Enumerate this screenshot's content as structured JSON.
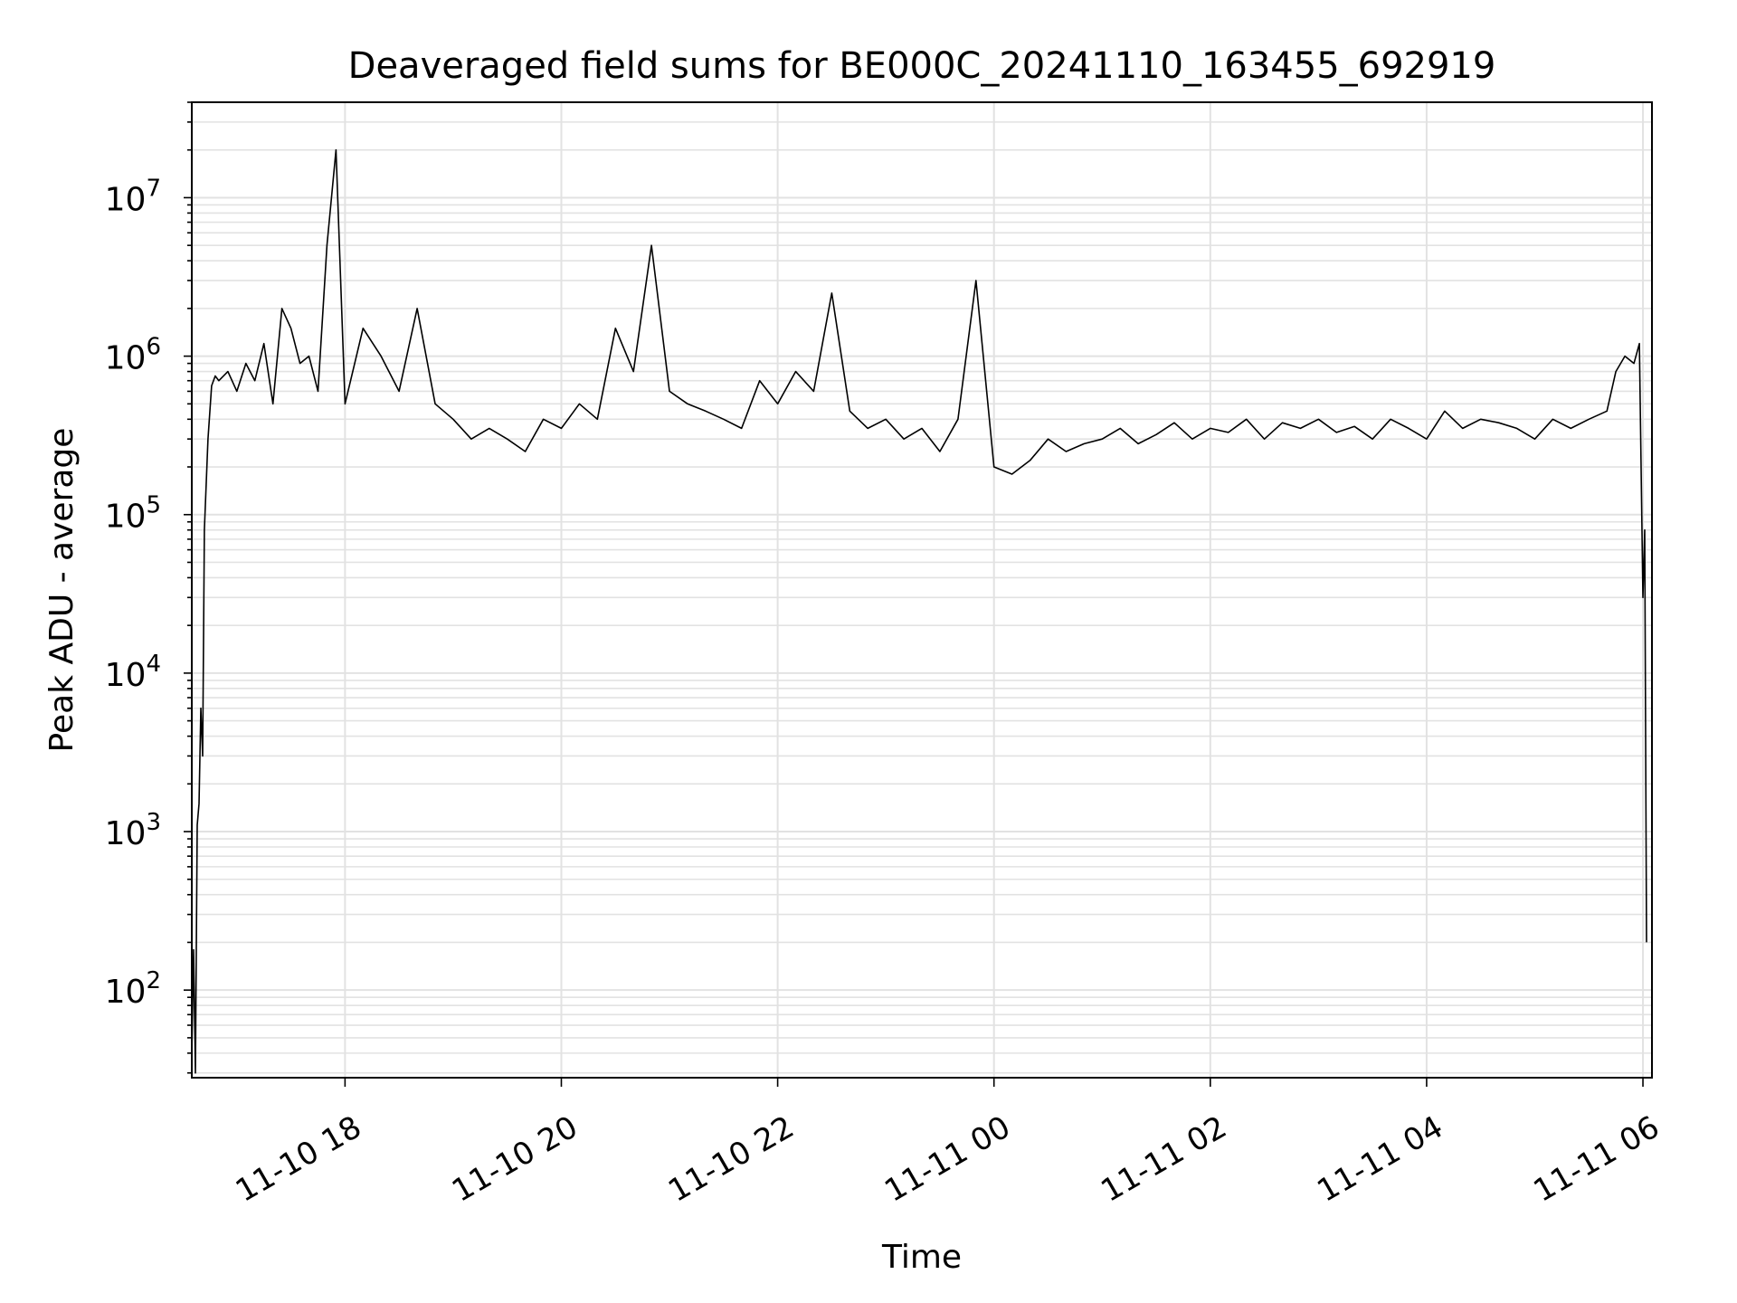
{
  "chart_data": {
    "type": "line",
    "title": "Deaveraged field sums for BE000C_20241110_163455_692919",
    "xlabel": "Time",
    "ylabel": "Peak ADU - average",
    "x_scale": "time",
    "y_scale": "log",
    "xlim": [
      "2024-11-10T16:35",
      "2024-11-11T06:05"
    ],
    "ylim": [
      28,
      40000000
    ],
    "grid": true,
    "grid_color": "#e2e2e2",
    "line_color": "#000000",
    "x_ticks": [
      {
        "label": "11-10 18",
        "t": "2024-11-10T18:00"
      },
      {
        "label": "11-10 20",
        "t": "2024-11-10T20:00"
      },
      {
        "label": "11-10 22",
        "t": "2024-11-10T22:00"
      },
      {
        "label": "11-11 00",
        "t": "2024-11-11T00:00"
      },
      {
        "label": "11-11 02",
        "t": "2024-11-11T02:00"
      },
      {
        "label": "11-11 04",
        "t": "2024-11-11T04:00"
      },
      {
        "label": "11-11 06",
        "t": "2024-11-11T06:00"
      }
    ],
    "y_ticks": [
      {
        "base": "10",
        "exp": "2",
        "value": 100
      },
      {
        "base": "10",
        "exp": "3",
        "value": 1000
      },
      {
        "base": "10",
        "exp": "4",
        "value": 10000
      },
      {
        "base": "10",
        "exp": "5",
        "value": 100000
      },
      {
        "base": "10",
        "exp": "6",
        "value": 1000000
      },
      {
        "base": "10",
        "exp": "7",
        "value": 10000000
      }
    ],
    "series": [
      {
        "x": [
          "2024-11-10T16:35",
          "2024-11-10T16:36",
          "2024-11-10T16:37",
          "2024-11-10T16:38",
          "2024-11-10T16:39",
          "2024-11-10T16:40",
          "2024-11-10T16:41",
          "2024-11-10T16:42",
          "2024-11-10T16:44",
          "2024-11-10T16:46",
          "2024-11-10T16:48",
          "2024-11-10T16:50",
          "2024-11-10T16:55",
          "2024-11-10T17:00",
          "2024-11-10T17:05",
          "2024-11-10T17:10",
          "2024-11-10T17:15",
          "2024-11-10T17:20",
          "2024-11-10T17:25",
          "2024-11-10T17:30",
          "2024-11-10T17:35",
          "2024-11-10T17:40",
          "2024-11-10T17:45",
          "2024-11-10T17:50",
          "2024-11-10T17:55",
          "2024-11-10T18:00",
          "2024-11-10T18:10",
          "2024-11-10T18:20",
          "2024-11-10T18:30",
          "2024-11-10T18:40",
          "2024-11-10T18:50",
          "2024-11-10T19:00",
          "2024-11-10T19:10",
          "2024-11-10T19:20",
          "2024-11-10T19:30",
          "2024-11-10T19:40",
          "2024-11-10T19:50",
          "2024-11-10T20:00",
          "2024-11-10T20:10",
          "2024-11-10T20:20",
          "2024-11-10T20:30",
          "2024-11-10T20:40",
          "2024-11-10T20:50",
          "2024-11-10T21:00",
          "2024-11-10T21:10",
          "2024-11-10T21:20",
          "2024-11-10T21:30",
          "2024-11-10T21:40",
          "2024-11-10T21:50",
          "2024-11-10T22:00",
          "2024-11-10T22:10",
          "2024-11-10T22:20",
          "2024-11-10T22:30",
          "2024-11-10T22:40",
          "2024-11-10T22:50",
          "2024-11-10T23:00",
          "2024-11-10T23:10",
          "2024-11-10T23:20",
          "2024-11-10T23:30",
          "2024-11-10T23:40",
          "2024-11-10T23:50",
          "2024-11-11T00:00",
          "2024-11-11T00:10",
          "2024-11-11T00:20",
          "2024-11-11T00:30",
          "2024-11-11T00:40",
          "2024-11-11T00:50",
          "2024-11-11T01:00",
          "2024-11-11T01:10",
          "2024-11-11T01:20",
          "2024-11-11T01:30",
          "2024-11-11T01:40",
          "2024-11-11T01:50",
          "2024-11-11T02:00",
          "2024-11-11T02:10",
          "2024-11-11T02:20",
          "2024-11-11T02:30",
          "2024-11-11T02:40",
          "2024-11-11T02:50",
          "2024-11-11T03:00",
          "2024-11-11T03:10",
          "2024-11-11T03:20",
          "2024-11-11T03:30",
          "2024-11-11T03:40",
          "2024-11-11T03:50",
          "2024-11-11T04:00",
          "2024-11-11T04:10",
          "2024-11-11T04:20",
          "2024-11-11T04:30",
          "2024-11-11T04:40",
          "2024-11-11T04:50",
          "2024-11-11T05:00",
          "2024-11-11T05:10",
          "2024-11-11T05:20",
          "2024-11-11T05:30",
          "2024-11-11T05:40",
          "2024-11-11T05:45",
          "2024-11-11T05:50",
          "2024-11-11T05:55",
          "2024-11-11T05:58",
          "2024-11-11T06:00",
          "2024-11-11T06:01",
          "2024-11-11T06:02"
        ],
        "y": [
          40,
          180,
          30,
          1100,
          1500,
          6000,
          3000,
          80000,
          300000,
          650000,
          750000,
          700000,
          800000,
          600000,
          900000,
          700000,
          1200000,
          500000,
          2000000,
          1500000,
          900000,
          1000000,
          600000,
          5000000,
          20000000,
          500000,
          1500000,
          1000000,
          600000,
          2000000,
          500000,
          400000,
          300000,
          350000,
          300000,
          250000,
          400000,
          350000,
          500000,
          400000,
          1500000,
          800000,
          5000000,
          600000,
          500000,
          450000,
          400000,
          350000,
          700000,
          500000,
          800000,
          600000,
          2500000,
          450000,
          350000,
          400000,
          300000,
          350000,
          250000,
          400000,
          3000000,
          200000,
          180000,
          220000,
          300000,
          250000,
          280000,
          300000,
          350000,
          280000,
          320000,
          380000,
          300000,
          350000,
          330000,
          400000,
          300000,
          380000,
          350000,
          400000,
          330000,
          360000,
          300000,
          400000,
          350000,
          300000,
          450000,
          350000,
          400000,
          380000,
          350000,
          300000,
          400000,
          350000,
          400000,
          450000,
          800000,
          1000000,
          900000,
          1200000,
          30000,
          80000,
          200
        ]
      }
    ]
  }
}
